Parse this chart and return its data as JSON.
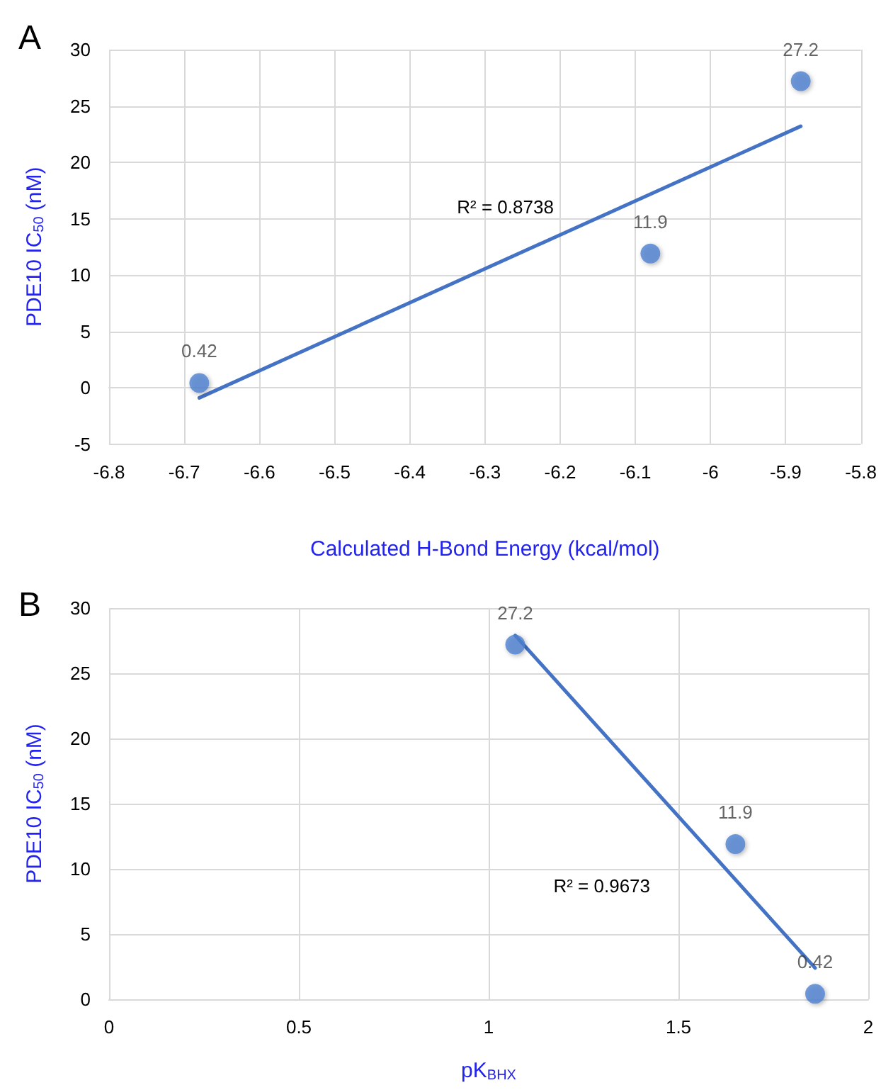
{
  "chart_data": [
    {
      "type": "scatter",
      "title": "A",
      "xlabel": "Calculated H-Bond Energy (kcal/mol)",
      "ylabel": "PDE10 IC$_{50}$ (nM)",
      "marker": "circle",
      "grid": true,
      "x": [
        -6.68,
        -6.08,
        -5.88
      ],
      "series": [
        {
          "color": "#4f81d0",
          "values": [
            0.42,
            11.9,
            27.2
          ],
          "value_labels": [
            "0.42",
            "11.9",
            "27.2"
          ]
        },
        {
          "type": "line",
          "color": "#4472c4",
          "marker": "none",
          "x": [
            -6.68,
            -5.88
          ],
          "values": [
            -0.9,
            23.2
          ]
        }
      ],
      "annotations": [
        "R² = 0.8738"
      ],
      "xlim": [
        -6.8,
        -5.8
      ],
      "xticks": [
        -6.8,
        -6.7,
        -6.6,
        -6.5,
        -6.4,
        -6.3,
        -6.2,
        -6.1,
        -6,
        -5.9,
        -5.8
      ],
      "ylim": [
        -5,
        30
      ],
      "yticks": [
        -5,
        0,
        5,
        10,
        15,
        20,
        25,
        30
      ]
    },
    {
      "type": "scatter",
      "title": "B",
      "xlabel": "pK$_{BHX}$",
      "ylabel": "PDE10 IC$_{50}$ (nM)",
      "marker": "circle",
      "grid": true,
      "x": [
        1.07,
        1.65,
        1.86
      ],
      "series": [
        {
          "color": "#4f81d0",
          "values": [
            27.2,
            11.9,
            0.42
          ],
          "value_labels": [
            "27.2",
            "11.9",
            "0.42"
          ]
        },
        {
          "type": "line",
          "color": "#4472c4",
          "marker": "none",
          "x": [
            1.07,
            1.86
          ],
          "values": [
            27.9,
            2.4
          ]
        }
      ],
      "annotations": [
        "R² = 0.9673"
      ],
      "xlim": [
        0,
        2
      ],
      "xticks": [
        0,
        0.5,
        1,
        1.5,
        2
      ],
      "ylim": [
        0,
        30
      ],
      "yticks": [
        0,
        5,
        10,
        15,
        20,
        25,
        30
      ]
    }
  ]
}
